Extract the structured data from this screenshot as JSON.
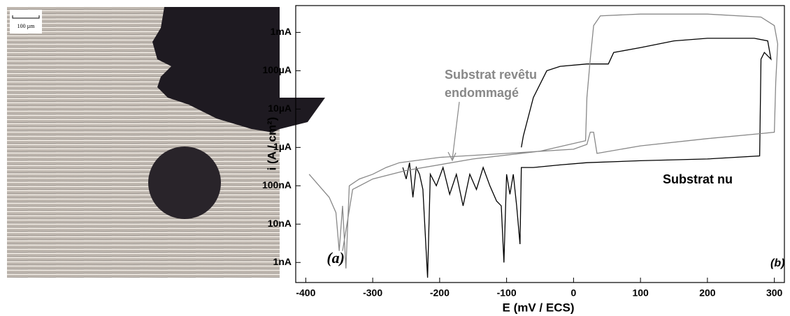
{
  "photo": {
    "scale_label": "100 µm",
    "label": "(a)"
  },
  "chart_data": {
    "type": "line",
    "x_label": "E (mV / ECS)",
    "y_label": "i (A / cm²)",
    "panel_label": "(b)",
    "annotations": [
      "Substrat revêtu",
      "endommagé",
      "Substrat nu"
    ],
    "xlim": [
      -415,
      315
    ],
    "xticks": [
      -400,
      -300,
      -200,
      -100,
      0,
      100,
      200,
      300
    ],
    "ylim": [
      3e-10,
      0.005
    ],
    "y_scale": "log",
    "yticks": [
      {
        "value": 1e-09,
        "label": "1nA"
      },
      {
        "value": 1e-08,
        "label": "10nA"
      },
      {
        "value": 1e-07,
        "label": "100nA"
      },
      {
        "value": 1e-06,
        "label": "1µA"
      },
      {
        "value": 1e-05,
        "label": "10µA"
      },
      {
        "value": 0.0001,
        "label": "100µA"
      },
      {
        "value": 0.001,
        "label": "1mA"
      }
    ],
    "series": [
      {
        "name": "Substrat nu",
        "color": "#000000",
        "x": [
          -255,
          -250,
          -245,
          -240,
          -235,
          -230,
          -225,
          -218,
          -214,
          -205,
          -195,
          -185,
          -175,
          -165,
          -155,
          -145,
          -135,
          -125,
          -115,
          -108,
          -104,
          -100,
          -95,
          -90,
          -85,
          -80,
          -78,
          -60,
          -20,
          20,
          100,
          200,
          278,
          280,
          285,
          295,
          290,
          270,
          200,
          150,
          100,
          60,
          52,
          20,
          -20,
          -40,
          -60,
          -75,
          -78
        ],
        "values": [
          3e-07,
          1.5e-07,
          4e-07,
          5e-08,
          3e-07,
          2e-07,
          8e-08,
          4e-10,
          2e-07,
          1e-07,
          3e-07,
          6e-08,
          2e-07,
          3e-08,
          2e-07,
          8e-08,
          3e-07,
          1e-07,
          4e-08,
          3e-08,
          1e-09,
          2e-07,
          6e-08,
          2e-07,
          3e-08,
          3e-09,
          3e-07,
          3e-07,
          3.5e-07,
          4e-07,
          4.5e-07,
          5e-07,
          6e-07,
          0.0002,
          0.0003,
          0.0002,
          0.0006,
          0.0007,
          0.0007,
          0.0006,
          0.0004,
          0.0003,
          0.00015,
          0.00015,
          0.00013,
          0.0001,
          2e-05,
          2e-06,
          1e-06
        ]
      },
      {
        "name": "Substrat revêtu endommagé",
        "color": "#888888",
        "x": [
          -395,
          -380,
          -365,
          -355,
          -350,
          -345,
          -340,
          -335,
          -320,
          -300,
          -280,
          -260,
          -200,
          -100,
          0,
          20,
          25,
          30,
          35,
          100,
          200,
          280,
          300,
          302,
          305,
          300,
          280,
          200,
          100,
          40,
          30,
          25,
          20,
          18,
          -50,
          -150,
          -250,
          -300,
          -330,
          -345
        ],
        "values": [
          2e-07,
          1e-07,
          5e-08,
          2e-08,
          2e-09,
          3e-08,
          7e-10,
          1e-07,
          1.5e-07,
          2e-07,
          3e-07,
          4e-07,
          5.5e-07,
          7e-07,
          9e-07,
          1.2e-06,
          2.5e-06,
          2.5e-06,
          7e-07,
          1.1e-06,
          1.7e-06,
          2.3e-06,
          2.5e-06,
          5e-05,
          0.0005,
          0.0015,
          0.0025,
          0.003,
          0.003,
          0.0027,
          0.0015,
          0.0002,
          2e-05,
          1.5e-06,
          8e-07,
          5e-07,
          2.5e-07,
          1.5e-07,
          8e-08,
          2e-09
        ]
      }
    ]
  }
}
